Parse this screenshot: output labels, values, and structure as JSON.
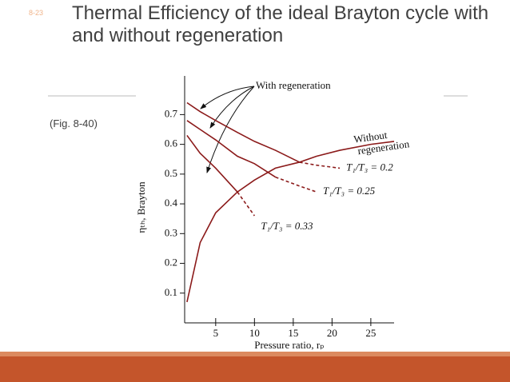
{
  "slide_number": "8-23",
  "title": "Thermal Efficiency of the ideal Brayton cycle with and without regeneration",
  "caption": "(Fig. 8-40)",
  "chart_data": {
    "type": "line",
    "x_label": "Pressure ratio, rₚ",
    "y_label": "ηₜₕ, Brayton",
    "annotations": {
      "with_regeneration": "With regeneration",
      "without_regeneration": [
        "Without",
        "regeneration"
      ]
    },
    "x": [
      1.3,
      3,
      5,
      7.8,
      10,
      12.7,
      15.8,
      18,
      21,
      25,
      28
    ],
    "xlim": [
      1,
      28
    ],
    "xticks": [
      5,
      10,
      15,
      20,
      25
    ],
    "ylim": [
      0,
      0.83
    ],
    "yticks": [
      0.1,
      0.2,
      0.3,
      0.4,
      0.5,
      0.6,
      0.7
    ],
    "series": [
      {
        "color": "#8b1a1a",
        "values": [
          0.07,
          0.27,
          0.37,
          0.44,
          0.48,
          0.52,
          0.54,
          0.56,
          0.58,
          0.6,
          0.61
        ],
        "dashed_values": [
          null,
          null,
          null,
          null,
          null,
          null,
          null,
          null,
          null,
          null,
          null
        ]
      },
      {
        "name": "T₁/T₃ = 0.2",
        "color": "#8b1a1a",
        "values": [
          0.74,
          0.71,
          0.68,
          0.64,
          0.61,
          0.58,
          0.54,
          null,
          null,
          null,
          null
        ],
        "dashed_values": [
          null,
          null,
          null,
          null,
          null,
          null,
          0.54,
          0.53,
          0.52,
          null,
          null
        ]
      },
      {
        "name": "T₁/T₃ = 0.25",
        "color": "#8b1a1a",
        "values": [
          0.68,
          0.65,
          0.615,
          0.56,
          0.535,
          0.49,
          null,
          null,
          null,
          null,
          null
        ],
        "dashed_values": [
          null,
          null,
          null,
          null,
          null,
          0.49,
          0.46,
          0.44,
          null,
          null,
          null
        ]
      },
      {
        "name": "T₁/T₃ = 0.33",
        "color": "#8b1a1a",
        "values": [
          0.63,
          0.57,
          0.52,
          0.44,
          null,
          null,
          null,
          null,
          null,
          null,
          null
        ],
        "dashed_values": [
          null,
          null,
          null,
          0.44,
          0.36,
          null,
          null,
          null,
          null,
          null,
          null
        ]
      }
    ]
  }
}
